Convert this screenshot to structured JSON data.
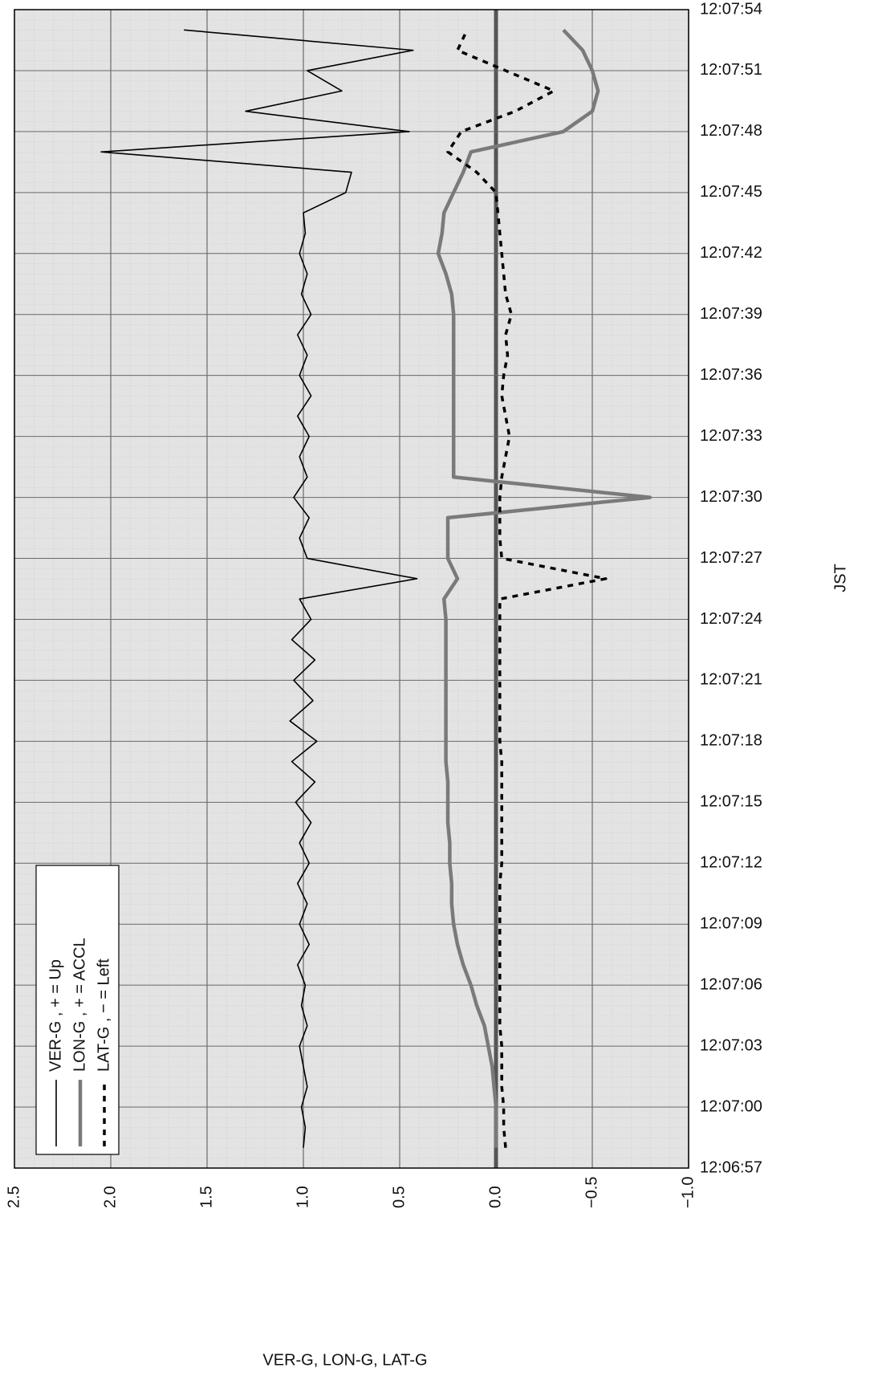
{
  "chart_data": {
    "type": "line",
    "x_label": "JST",
    "y_label": "VER-G, LON-G, LAT-G",
    "x": [
      "12:06:58",
      "12:06:59",
      "12:07:00",
      "12:07:01",
      "12:07:02",
      "12:07:03",
      "12:07:04",
      "12:07:05",
      "12:07:06",
      "12:07:07",
      "12:07:08",
      "12:07:09",
      "12:07:10",
      "12:07:11",
      "12:07:12",
      "12:07:13",
      "12:07:14",
      "12:07:15",
      "12:07:16",
      "12:07:17",
      "12:07:18",
      "12:07:19",
      "12:07:20",
      "12:07:21",
      "12:07:22",
      "12:07:23",
      "12:07:24",
      "12:07:25",
      "12:07:26",
      "12:07:27",
      "12:07:28",
      "12:07:29",
      "12:07:30",
      "12:07:31",
      "12:07:32",
      "12:07:33",
      "12:07:34",
      "12:07:35",
      "12:07:36",
      "12:07:37",
      "12:07:38",
      "12:07:39",
      "12:07:40",
      "12:07:41",
      "12:07:42",
      "12:07:43",
      "12:07:44",
      "12:07:45",
      "12:07:46",
      "12:07:47",
      "12:07:48",
      "12:07:49",
      "12:07:50",
      "12:07:51",
      "12:07:52",
      "12:07:53"
    ],
    "series": [
      {
        "name": "VER-G , + = Up",
        "color": "#000000",
        "style": "solid",
        "values": [
          1.0,
          0.99,
          1.01,
          0.98,
          1.0,
          1.02,
          0.98,
          1.01,
          0.99,
          1.03,
          0.97,
          1.02,
          0.98,
          1.03,
          0.97,
          1.02,
          0.96,
          1.04,
          0.94,
          1.06,
          0.93,
          1.07,
          0.95,
          1.05,
          0.94,
          1.06,
          0.96,
          1.02,
          0.41,
          0.98,
          1.02,
          0.97,
          1.05,
          0.98,
          1.02,
          0.97,
          1.03,
          0.96,
          1.02,
          0.98,
          1.03,
          0.96,
          1.01,
          0.98,
          1.02,
          0.99,
          1.0,
          0.78,
          0.75,
          2.05,
          0.45,
          1.3,
          0.8,
          0.98,
          0.43,
          1.62
        ]
      },
      {
        "name": "LON-G , + = ACCL",
        "color": "#7a7a7a",
        "style": "thick",
        "values": [
          0.0,
          0.0,
          0.0,
          0.01,
          0.02,
          0.04,
          0.06,
          0.1,
          0.13,
          0.17,
          0.2,
          0.22,
          0.23,
          0.23,
          0.24,
          0.24,
          0.25,
          0.25,
          0.25,
          0.26,
          0.26,
          0.26,
          0.26,
          0.26,
          0.26,
          0.26,
          0.26,
          0.27,
          0.2,
          0.25,
          0.25,
          0.25,
          -0.8,
          0.22,
          0.22,
          0.22,
          0.22,
          0.22,
          0.22,
          0.22,
          0.22,
          0.22,
          0.23,
          0.26,
          0.3,
          0.28,
          0.27,
          0.22,
          0.17,
          0.13,
          -0.35,
          -0.5,
          -0.53,
          -0.5,
          -0.45,
          -0.35
        ]
      },
      {
        "name": "LAT-G , − = Left",
        "color": "#000000",
        "style": "dashed",
        "values": [
          -0.05,
          -0.04,
          -0.04,
          -0.03,
          -0.03,
          -0.03,
          -0.02,
          -0.02,
          -0.02,
          -0.02,
          -0.02,
          -0.02,
          -0.02,
          -0.02,
          -0.03,
          -0.03,
          -0.03,
          -0.03,
          -0.03,
          -0.03,
          -0.02,
          -0.02,
          -0.02,
          -0.02,
          -0.02,
          -0.02,
          -0.02,
          -0.02,
          -0.57,
          -0.03,
          -0.02,
          -0.02,
          -0.02,
          -0.03,
          -0.05,
          -0.07,
          -0.05,
          -0.03,
          -0.04,
          -0.06,
          -0.05,
          -0.08,
          -0.05,
          -0.04,
          -0.03,
          -0.02,
          -0.01,
          0.0,
          0.1,
          0.25,
          0.18,
          -0.1,
          -0.3,
          -0.05,
          0.2,
          0.15
        ]
      }
    ],
    "xlim": [
      "12:06:57",
      "12:07:54"
    ],
    "xticks": [
      "12:06:57",
      "12:07:00",
      "12:07:03",
      "12:07:06",
      "12:07:09",
      "12:07:12",
      "12:07:15",
      "12:07:18",
      "12:07:21",
      "12:07:24",
      "12:07:27",
      "12:07:30",
      "12:07:33",
      "12:07:36",
      "12:07:39",
      "12:07:42",
      "12:07:45",
      "12:07:48",
      "12:07:51",
      "12:07:54"
    ],
    "ylim": [
      2.5,
      -1.0
    ],
    "yticks": [
      2.5,
      {
        "value": 2,
        "label": "2.0"
      },
      1.5,
      {
        "value": 1,
        "label": "1.0"
      },
      0.5,
      {
        "value": 0,
        "label": "0.0"
      },
      {
        "value": -0.5,
        "label": "−0.5"
      },
      {
        "value": -1,
        "label": "−1.0"
      }
    ],
    "grid": true,
    "legend": "bottom-left"
  }
}
